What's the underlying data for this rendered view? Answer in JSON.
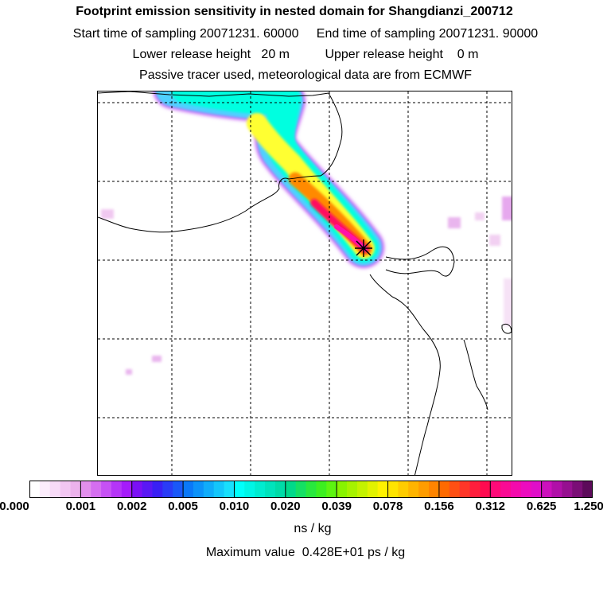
{
  "header": {
    "title": "Footprint emission sensitivity in nested domain for Shangdianzi_200712",
    "sampling_line": "Start time of sampling 20071231. 60000     End time of sampling 20071231. 90000",
    "release_line": "Lower release height   20 m          Upper release height    0 m",
    "info_line": "Passive tracer used, meteorological data are from ECMWF"
  },
  "colorbar": {
    "unit_label": "ns / kg",
    "tick_labels": [
      "0.000",
      "0.001",
      "0.002",
      "0.005",
      "0.010",
      "0.020",
      "0.039",
      "0.078",
      "0.156",
      "0.312",
      "0.625",
      "1.250"
    ],
    "colors": [
      [
        "#ffffff",
        "#fcedfc",
        "#f8dbf8",
        "#f2c6f2",
        "#ecb2ec"
      ],
      [
        "#e28fec",
        "#d56ef0",
        "#c651f4",
        "#b535f7",
        "#a51cfa"
      ],
      [
        "#7b10f5",
        "#5a18f5",
        "#3a20f5",
        "#2a3cf7",
        "#1a58f8"
      ],
      [
        "#0a78f8",
        "#0c92f9",
        "#10acfa",
        "#14c6fb",
        "#18dffc"
      ],
      [
        "#00fffb",
        "#00f5e6",
        "#00ecd0",
        "#00e3bc",
        "#00dba7"
      ],
      [
        "#00d98a",
        "#14e064",
        "#28e83e",
        "#3cef20",
        "#5cf410"
      ],
      [
        "#88f300",
        "#a6f200",
        "#c4f200",
        "#e2f200",
        "#fff200"
      ],
      [
        "#ffe400",
        "#ffcc00",
        "#ffb400",
        "#ff9c00",
        "#ff8400"
      ],
      [
        "#ff6a00",
        "#ff5014",
        "#ff3628",
        "#ff1e3c",
        "#ff0a50"
      ],
      [
        "#ff0a78",
        "#fa0a94",
        "#f40aac",
        "#ec0cbe",
        "#e00ec8"
      ],
      [
        "#cc10bc",
        "#b010a8",
        "#961090",
        "#7a0e76",
        "#5c0a5a"
      ]
    ]
  },
  "footer": {
    "max_value_text": "Maximum value  0.428E+01 ps / kg"
  },
  "map": {
    "receptor": "Shangdianzi",
    "plume_colors": [
      "#c866f5",
      "#4fd0ff",
      "#00ffe0",
      "#ffff33",
      "#ff8a00",
      "#ff1060",
      "#ff10a8",
      "#5a0a5a"
    ]
  }
}
